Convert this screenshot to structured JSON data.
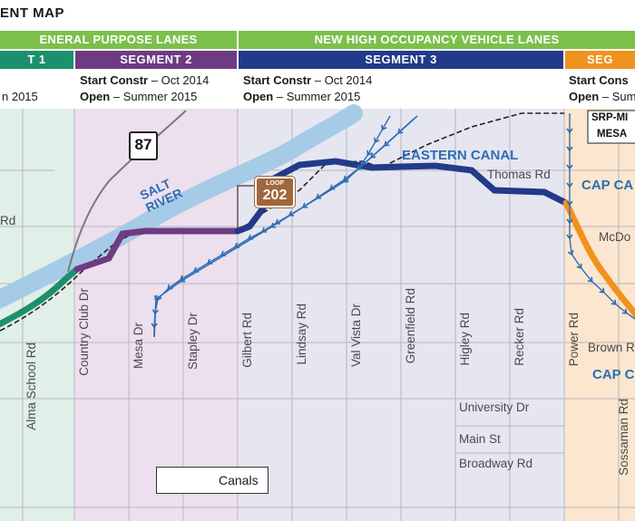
{
  "title": "ENT MAP",
  "bands": {
    "general": "ENERAL PURPOSE LANES",
    "hov": "NEW HIGH OCCUPANCY VEHICLE LANES"
  },
  "segments": [
    {
      "label": "T 1",
      "color": "#1c8f6d",
      "start_label": "",
      "start_value": "",
      "open_label": "",
      "open_value": "n 2015"
    },
    {
      "label": "SEGMENT 2",
      "color": "#6e3b83",
      "start_label": "Start Constr",
      "start_value": " – Oct 2014",
      "open_label": "Open",
      "open_value": " – Summer 2015"
    },
    {
      "label": "SEGMENT 3",
      "color": "#223a8a",
      "start_label": "Start Constr",
      "start_value": " – Oct 2014",
      "open_label": "Open",
      "open_value": " – Summer 2015"
    },
    {
      "label": "SEG",
      "color": "#f0921e",
      "start_label": "Start Cons",
      "start_value": "",
      "open_label": "Open",
      "open_value": " – Sum"
    }
  ],
  "roads_vertical": [
    "Alma School Rd",
    "Country Club Dr",
    "Mesa Dr",
    "Stapley Dr",
    "Gilbert Rd",
    "Lindsay Rd",
    "Val Vista Dr",
    "Greenfield Rd",
    "Higley Rd",
    "Recker Rd",
    "Power Rd",
    "Sossaman Rd"
  ],
  "roads_horizontal": {
    "rd_left": "Rd",
    "thomas": "Thomas Rd",
    "mcdowell": "McDo",
    "brown": "Brown R",
    "university": "University Dr",
    "main": "Main St",
    "broadway": "Broadway Rd"
  },
  "labels": {
    "salt_river": [
      "SALT",
      "RIVER"
    ],
    "eastern_canal": "EASTERN CANAL",
    "cap_canal_top": "CAP CA",
    "cap_canal_bottom": "CAP C",
    "srp": "SRP-MI",
    "mesa": "MESA",
    "loop_text": "LOOP",
    "loop_num": "202",
    "sr87": "87"
  },
  "legend": {
    "label": "Canals"
  },
  "colors": {
    "general_band": "#7cc04b",
    "hov_band": "#2a56a8",
    "river": "#a6cbe6",
    "canal": "#2d6db5",
    "seg1_bg": "#e0efe7",
    "seg2_bg": "#ecdfee",
    "seg3_bg": "#e6e6f1",
    "seg4_bg": "#fbe6cf"
  }
}
